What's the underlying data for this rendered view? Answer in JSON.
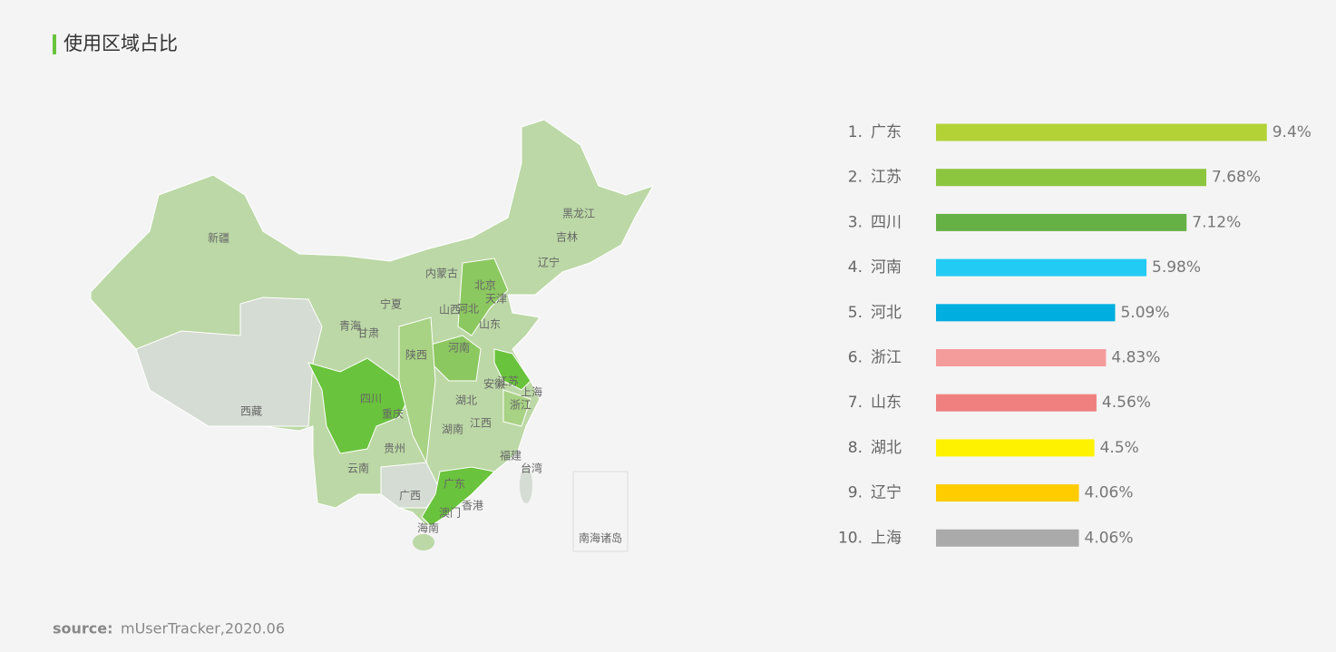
{
  "header": {
    "title": "使用区域占比"
  },
  "map": {
    "labels": [
      "新疆",
      "西藏",
      "青海",
      "甘肃",
      "宁夏",
      "内蒙古",
      "黑龙江",
      "吉林",
      "辽宁",
      "北京",
      "天津",
      "河北",
      "山西",
      "山东",
      "陕西",
      "河南",
      "四川",
      "重庆",
      "湖北",
      "安徽",
      "江苏",
      "上海",
      "浙江",
      "湖南",
      "江西",
      "贵州",
      "云南",
      "广西",
      "广东",
      "福建",
      "台湾",
      "香港",
      "澳门",
      "海南",
      "南海诸岛"
    ]
  },
  "chart_data": {
    "type": "bar",
    "orientation": "horizontal",
    "rank_labels": [
      "1.",
      "2.",
      "3.",
      "4.",
      "5.",
      "6.",
      "7.",
      "8.",
      "9.",
      "10."
    ],
    "categories": [
      "广东",
      "江苏",
      "四川",
      "河南",
      "河北",
      "浙江",
      "山东",
      "湖北",
      "辽宁",
      "上海"
    ],
    "values": [
      9.4,
      7.68,
      7.12,
      5.98,
      5.09,
      4.83,
      4.56,
      4.5,
      4.06,
      4.06
    ],
    "value_labels": [
      "9.4%",
      "7.68%",
      "7.12%",
      "5.98%",
      "5.09%",
      "4.83%",
      "4.56%",
      "4.5%",
      "4.06%",
      "4.06%"
    ],
    "colors": [
      "#b2d235",
      "#8cc63f",
      "#66b145",
      "#22cbf4",
      "#00aedf",
      "#f49c9c",
      "#f08080",
      "#fff200",
      "#ffcc00",
      "#aaaaaa"
    ],
    "xlim": [
      0,
      10
    ]
  },
  "source": {
    "label": "source:",
    "text": "mUserTracker,2020.06"
  }
}
